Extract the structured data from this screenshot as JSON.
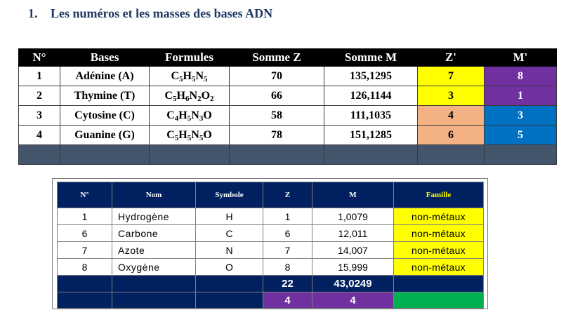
{
  "heading": {
    "number": "1.",
    "text": "Les numéros et les masses des bases ADN"
  },
  "table1": {
    "headers": [
      "N°",
      "Bases",
      "Formules",
      "Somme Z",
      "Somme M",
      "Z'",
      "M'"
    ],
    "rows": [
      {
        "n": "1",
        "base": "Adénine (A)",
        "formula": [
          [
            "C",
            "5"
          ],
          [
            "H",
            "5"
          ],
          [
            "N",
            "5"
          ]
        ],
        "z": "70",
        "m": "135,1295",
        "zp": "7",
        "mp": "8",
        "zp_color": "#ffff00",
        "mp_color": "#7030a0"
      },
      {
        "n": "2",
        "base": "Thymine (T)",
        "formula": [
          [
            "C",
            "5"
          ],
          [
            "H",
            "6"
          ],
          [
            "N",
            "2"
          ],
          [
            "O",
            "2"
          ]
        ],
        "z": "66",
        "m": "126,1144",
        "zp": "3",
        "mp": "1",
        "zp_color": "#ffff00",
        "mp_color": "#7030a0"
      },
      {
        "n": "3",
        "base": "Cytosine (C)",
        "formula": [
          [
            "C",
            "4"
          ],
          [
            "H",
            "5"
          ],
          [
            "N",
            "3"
          ],
          [
            "O",
            ""
          ]
        ],
        "z": "58",
        "m": "111,1035",
        "zp": "4",
        "mp": "3",
        "zp_color": "#f4b183",
        "mp_color": "#0070c0"
      },
      {
        "n": "4",
        "base": "Guanine (G)",
        "formula": [
          [
            "C",
            "5"
          ],
          [
            "H",
            "5"
          ],
          [
            "N",
            "5"
          ],
          [
            "O",
            ""
          ]
        ],
        "z": "78",
        "m": "151,1285",
        "zp": "6",
        "mp": "5",
        "zp_color": "#f4b183",
        "mp_color": "#0070c0"
      }
    ]
  },
  "table2": {
    "headers": [
      "N°",
      "Nom",
      "Symbole",
      "Z",
      "M",
      "Famille"
    ],
    "rows": [
      {
        "n": "1",
        "nom": "Hydrogène",
        "symbole": "H",
        "z": "1",
        "m": "1,0079",
        "famille": "non-métaux"
      },
      {
        "n": "6",
        "nom": "Carbone",
        "symbole": "C",
        "z": "6",
        "m": "12,011",
        "famille": "non-métaux"
      },
      {
        "n": "7",
        "nom": "Azote",
        "symbole": "N",
        "z": "7",
        "m": "14,007",
        "famille": "non-métaux"
      },
      {
        "n": "8",
        "nom": "Oxygène",
        "symbole": "O",
        "z": "8",
        "m": "15,999",
        "famille": "non-métaux"
      }
    ],
    "sum_z": "22",
    "sum_m": "43,0249",
    "count_z": "4",
    "count_m": "4"
  }
}
